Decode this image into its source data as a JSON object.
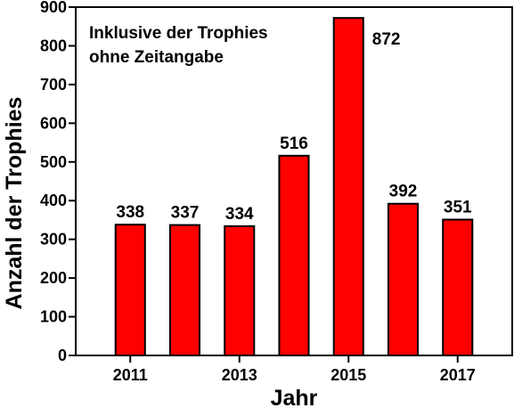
{
  "chart_data": {
    "type": "bar",
    "annotation": [
      "Inklusive der Trophies",
      "ohne Zeitangabe"
    ],
    "x_label": "Jahr",
    "y_label": "Anzahl der Trophies",
    "x": [
      2011,
      2012,
      2013,
      2014,
      2015,
      2016,
      2017
    ],
    "values": [
      338,
      337,
      334,
      516,
      872,
      392,
      351
    ],
    "color": "#ff0000",
    "xlim": [
      2010,
      2018
    ],
    "xticks": [
      2011,
      2013,
      2015,
      2017
    ],
    "ylim": [
      0,
      900
    ],
    "yticks": [
      0,
      100,
      200,
      300,
      400,
      500,
      600,
      700,
      800,
      900
    ]
  }
}
